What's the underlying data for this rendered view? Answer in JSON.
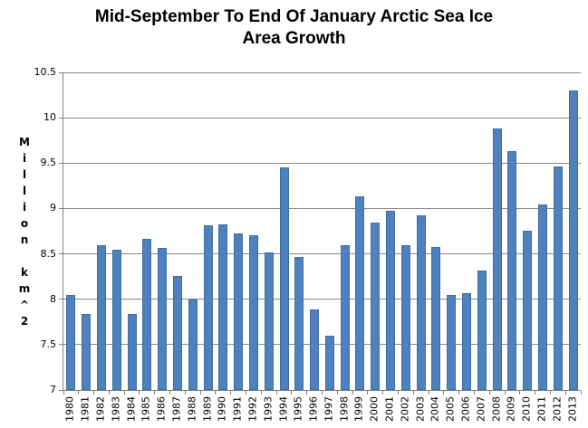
{
  "chart_data": {
    "type": "bar",
    "title": "Mid-September To End Of January Arctic Sea Ice Area Growth",
    "title_line1": "Mid-September To End Of January Arctic Sea Ice",
    "title_line2": "Area Growth",
    "ylabel": "Million km^2",
    "xlabel": "",
    "ylim": [
      7,
      10.5
    ],
    "ytick_step": 0.5,
    "ytick_labels": [
      "10.5",
      "10",
      "9.5",
      "9",
      "8.5",
      "8",
      "7.5",
      "7"
    ],
    "grid": true,
    "legend": false,
    "categories": [
      1980,
      1981,
      1982,
      1983,
      1984,
      1985,
      1986,
      1987,
      1988,
      1989,
      1990,
      1991,
      1992,
      1993,
      1994,
      1995,
      1996,
      1997,
      1998,
      1999,
      2000,
      2001,
      2002,
      2003,
      2004,
      2005,
      2006,
      2007,
      2008,
      2009,
      2010,
      2011,
      2012,
      2013
    ],
    "values": [
      8.05,
      7.84,
      8.6,
      8.55,
      7.84,
      8.67,
      8.57,
      8.26,
      8.0,
      8.81,
      8.82,
      8.73,
      8.71,
      8.52,
      9.45,
      8.47,
      7.89,
      7.6,
      8.6,
      9.13,
      8.84,
      8.97,
      8.6,
      8.92,
      8.58,
      8.05,
      8.07,
      8.32,
      9.88,
      9.63,
      8.75,
      9.04,
      9.46,
      10.3
    ],
    "colors": {
      "bar_fill": "#4F81BD",
      "bar_border": "#3E6DA5",
      "gridline": "#878787",
      "axis": "#808080",
      "text": "#000000",
      "background": "#FFFFFF"
    }
  }
}
